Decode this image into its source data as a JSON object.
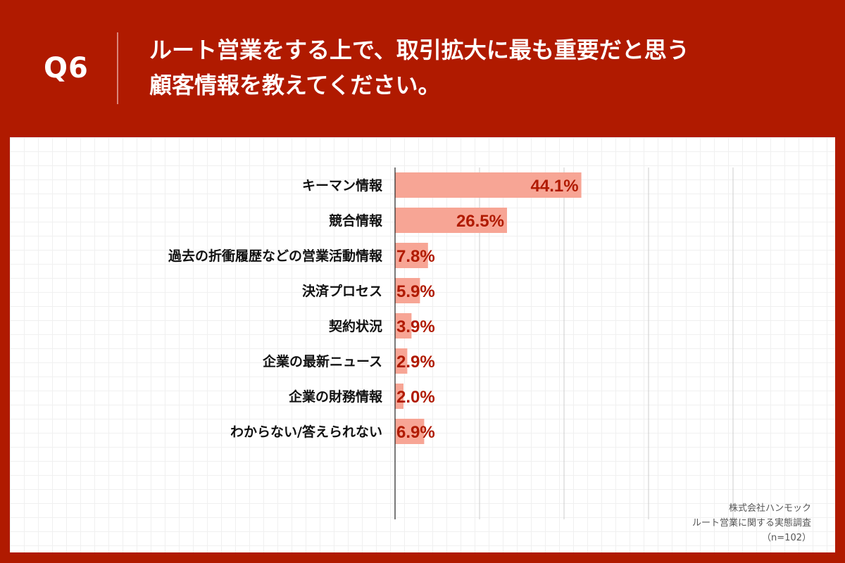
{
  "header": {
    "question_number": "Q6",
    "question_line1": "ルート営業をする上で、取引拡大に最も重要だと思う",
    "question_line2": "顧客情報を教えてください。"
  },
  "colors": {
    "header_bg": "#b01a00",
    "bar_fill": "#f7a595",
    "value_text": "#b01a00",
    "axis_line": "#222222",
    "grid_line": "#cccccc"
  },
  "chart_data": {
    "type": "bar",
    "orientation": "horizontal",
    "categories": [
      "キーマン情報",
      "競合情報",
      "過去の折衝履歴などの営業活動情報",
      "決済プロセス",
      "契約状況",
      "企業の最新ニュース",
      "企業の財務情報",
      "わからない/答えられない"
    ],
    "values": [
      44.1,
      26.5,
      7.8,
      5.9,
      3.9,
      2.9,
      2.0,
      6.9
    ],
    "value_labels": [
      "44.1%",
      "26.5%",
      "7.8%",
      "5.9%",
      "3.9%",
      "2.9%",
      "2.0%",
      "6.9%"
    ],
    "unit": "%",
    "xlim": [
      0,
      80
    ],
    "gridline_values": [
      20,
      40,
      60,
      80
    ],
    "title": "ルート営業をする上で、取引拡大に最も重要だと思う顧客情報を教えてください。"
  },
  "source": {
    "company": "株式会社ハンモック",
    "survey": "ルート営業に関する実態調査",
    "sample": "（n=102）"
  }
}
